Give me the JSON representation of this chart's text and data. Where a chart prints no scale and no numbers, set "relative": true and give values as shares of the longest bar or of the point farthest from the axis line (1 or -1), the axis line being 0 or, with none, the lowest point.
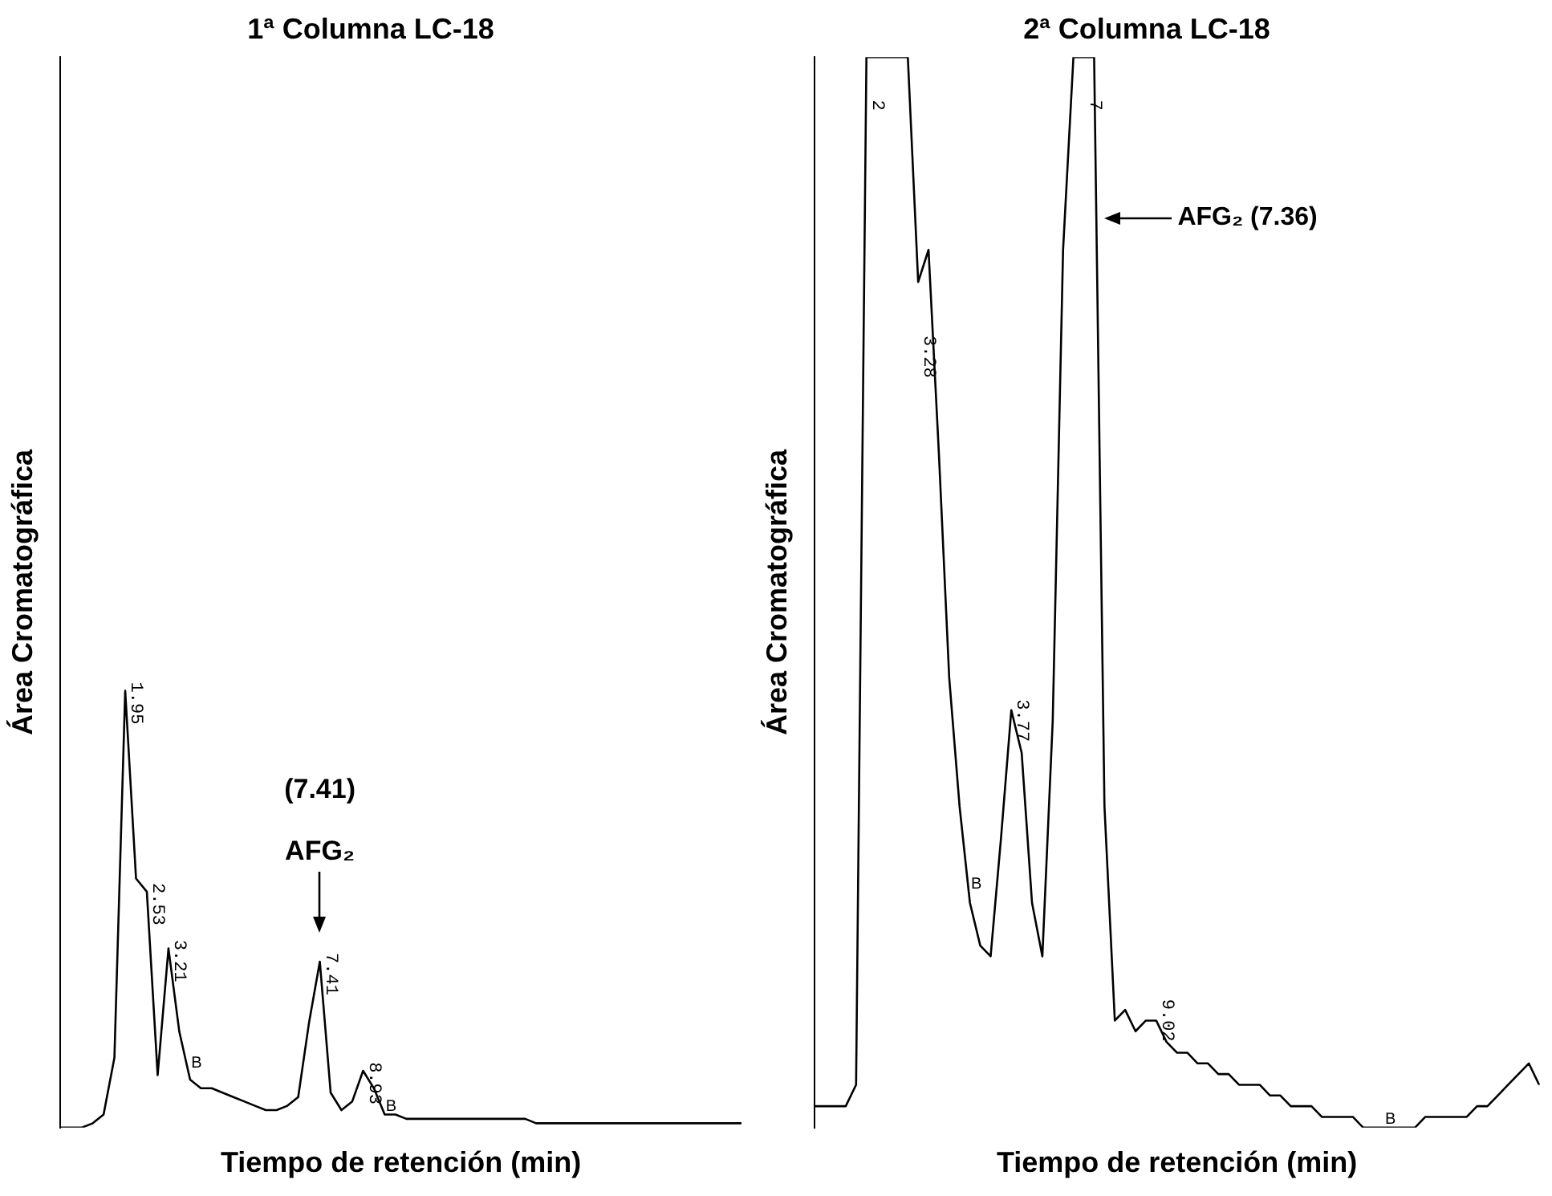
{
  "chart_data": [
    {
      "type": "line",
      "title": "1ª Columna LC-18",
      "xlabel": "Tiempo de retención (min)",
      "ylabel": "Área Cromatográfica",
      "relative": true,
      "grid": false,
      "legend": false,
      "marker": "none",
      "categories": [
        null,
        null,
        null,
        null,
        null,
        null,
        null,
        null,
        null,
        null,
        null,
        null,
        null,
        null,
        null,
        null,
        null,
        null,
        null,
        null,
        null,
        null,
        null,
        null,
        null,
        null,
        null,
        null,
        null,
        null,
        null,
        null,
        null,
        null,
        null,
        null,
        null,
        null,
        null,
        null,
        null,
        null,
        null,
        null,
        null,
        null,
        null,
        null,
        null,
        null,
        null,
        null,
        null,
        null,
        null,
        null,
        null,
        null,
        null,
        null,
        null,
        null,
        null,
        null
      ],
      "series": [
        {
          "color": "#000000",
          "values": [
            0,
            0,
            0,
            0.01,
            0.03,
            0.16,
            1,
            0.57,
            0.54,
            0.12,
            0.41,
            0.22,
            0.11,
            0.09,
            0.09,
            0.08,
            0.07,
            0.06,
            0.05,
            0.04,
            0.04,
            0.05,
            0.07,
            0.24,
            0.38,
            0.08,
            0.04,
            0.06,
            0.13,
            0.09,
            0.03,
            0.03,
            0.02,
            0.02,
            0.02,
            0.02,
            0.02,
            0.02,
            0.02,
            0.02,
            0.02,
            0.02,
            0.02,
            0.02,
            0.01,
            0.01,
            0.01,
            0.01,
            0.01,
            0.01,
            0.01,
            0.01,
            0.01,
            0.01,
            0.01,
            0.01,
            0.01,
            0.01,
            0.01,
            0.01,
            0.01,
            0.01,
            0.01,
            0.01
          ]
        }
      ],
      "annotations": [
        "1.95",
        "2.53",
        "3.21",
        "B",
        "7.41",
        "8.93",
        "B",
        "(7.41)",
        "AFG₂"
      ]
    },
    {
      "type": "line",
      "title": "2ª Columna LC-18",
      "xlabel": "Tiempo de retención (min)",
      "ylabel": "Área Cromatográfica",
      "relative": true,
      "grid": false,
      "legend": false,
      "marker": "none",
      "categories": [
        null,
        null,
        null,
        null,
        null,
        null,
        null,
        null,
        null,
        null,
        null,
        null,
        null,
        null,
        null,
        null,
        null,
        null,
        null,
        null,
        null,
        null,
        null,
        null,
        null,
        null,
        null,
        null,
        null,
        null,
        null,
        null,
        null,
        null,
        null,
        null,
        null,
        null,
        null,
        null,
        null,
        null,
        null,
        null,
        null,
        null,
        null,
        null,
        null,
        null,
        null,
        null,
        null,
        null,
        null,
        null,
        null,
        null,
        null,
        null,
        null,
        null,
        null,
        null,
        null,
        null,
        null,
        null,
        null,
        null,
        null
      ],
      "series": [
        {
          "color": "#000000",
          "values": [
            0.02,
            0.02,
            0.02,
            0.02,
            0.04,
            1,
            1,
            1,
            1,
            1,
            0.79,
            0.82,
            0.63,
            0.42,
            0.3,
            0.21,
            0.17,
            0.16,
            0.27,
            0.39,
            0.35,
            0.21,
            0.16,
            0.38,
            0.82,
            1,
            1,
            1,
            0.3,
            0.1,
            0.11,
            0.09,
            0.1,
            0.1,
            0.08,
            0.07,
            0.07,
            0.06,
            0.06,
            0.05,
            0.05,
            0.04,
            0.04,
            0.04,
            0.03,
            0.03,
            0.02,
            0.02,
            0.02,
            0.01,
            0.01,
            0.01,
            0.01,
            0,
            0,
            0,
            0,
            0,
            0,
            0.01,
            0.01,
            0.01,
            0.01,
            0.01,
            0.02,
            0.02,
            0.03,
            0.04,
            0.05,
            0.06,
            0.04
          ]
        }
      ],
      "annotations": [
        "2",
        "3.28",
        "B",
        "3.77",
        "7",
        "AFG₂ (7.36)",
        "9.02",
        "B"
      ]
    }
  ]
}
